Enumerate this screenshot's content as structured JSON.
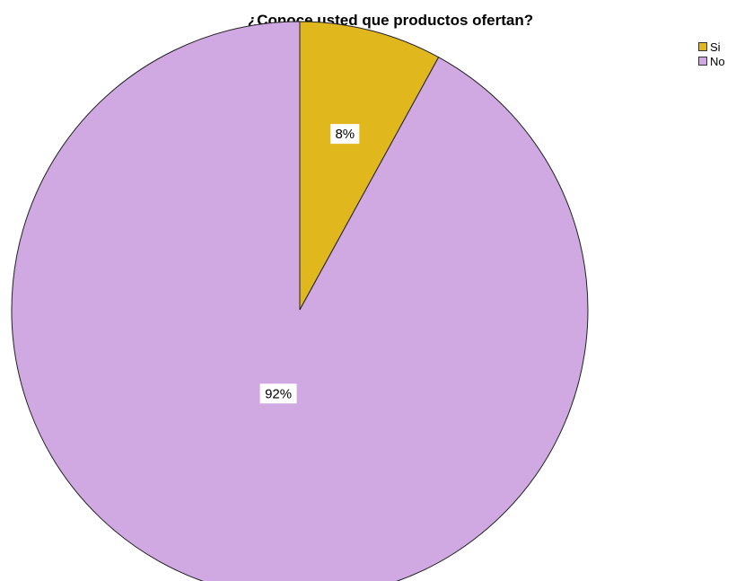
{
  "chart_data": {
    "type": "pie",
    "title": "¿Conoce usted que productos ofertan?",
    "categories": [
      "Si",
      "No"
    ],
    "values": [
      8,
      92
    ],
    "labels": [
      "8%",
      "92%"
    ],
    "colors": [
      "#E0B81E",
      "#D0A8E2"
    ],
    "legend_position": "top-right"
  }
}
